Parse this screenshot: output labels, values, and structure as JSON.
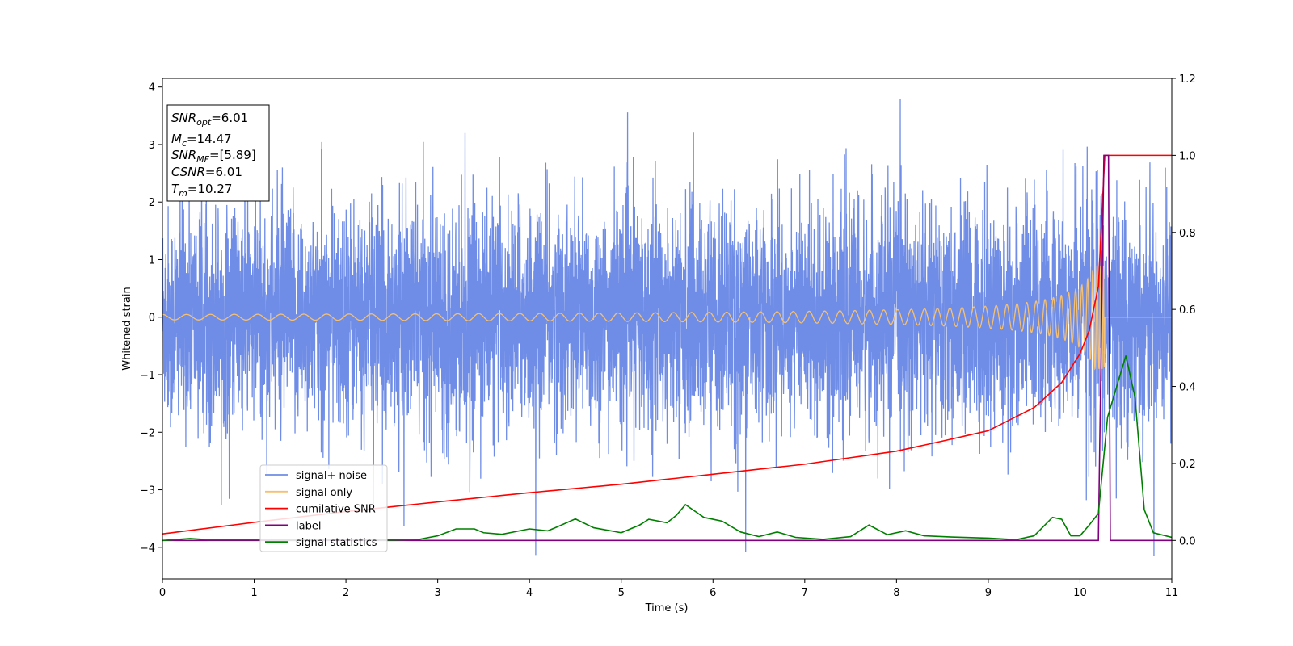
{
  "chart_data": {
    "type": "line",
    "xlabel": "Time (s)",
    "ylabel": "Whitened strain",
    "xlim": [
      0,
      11
    ],
    "ylim_left": [
      -4.55,
      4.15
    ],
    "ylim_right": [
      -0.1,
      1.2
    ],
    "x_ticks": [
      "0",
      "1",
      "2",
      "3",
      "4",
      "5",
      "6",
      "7",
      "8",
      "9",
      "10",
      "11"
    ],
    "y_ticks_left": [
      "−4",
      "−3",
      "−2",
      "−1",
      "0",
      "1",
      "2",
      "3",
      "4"
    ],
    "y_ticks_right": [
      "0.0",
      "0.2",
      "0.4",
      "0.6",
      "0.8",
      "1.0",
      "1.2"
    ],
    "grid": false,
    "legend_placement": "lower-left",
    "series": [
      {
        "name": "signal+ noise",
        "axis": "left",
        "color": "#6f8de6",
        "description_values": "noise band approx ±1.3 typical, peaks to +3.75 / −4.15"
      },
      {
        "name": "signal only",
        "axis": "left",
        "color": "#f5c072",
        "chirp_end": 10.27,
        "max_amplitude": 0.9
      },
      {
        "name": "cumilative SNR",
        "axis": "right",
        "color": "#ff0000",
        "x": [
          0,
          1,
          2,
          3,
          4,
          5,
          6,
          7,
          8,
          8.5,
          9,
          9.5,
          9.8,
          10,
          10.1,
          10.2,
          10.27,
          10.3,
          11
        ],
        "y": [
          0.017,
          0.047,
          0.075,
          0.1,
          0.124,
          0.146,
          0.172,
          0.198,
          0.232,
          0.258,
          0.285,
          0.345,
          0.41,
          0.485,
          0.545,
          0.66,
          1.0,
          1.0,
          1.0
        ]
      },
      {
        "name": "label",
        "axis": "right",
        "color": "#800080",
        "x": [
          0,
          10.2,
          10.26,
          10.31,
          10.33,
          11
        ],
        "y": [
          0,
          0,
          1.0,
          1.0,
          0,
          0
        ]
      },
      {
        "name": "signal statistics",
        "axis": "right",
        "color": "#008000",
        "x": [
          0,
          0.3,
          0.5,
          1,
          1.5,
          2,
          2.5,
          2.8,
          3,
          3.2,
          3.4,
          3.5,
          3.7,
          4,
          4.2,
          4.3,
          4.5,
          4.7,
          5,
          5.2,
          5.3,
          5.5,
          5.6,
          5.7,
          5.9,
          6,
          6.1,
          6.3,
          6.5,
          6.7,
          6.9,
          7.2,
          7.5,
          7.7,
          7.9,
          8.1,
          8.3,
          8.6,
          9,
          9.3,
          9.5,
          9.7,
          9.8,
          9.9,
          10,
          10.1,
          10.2,
          10.3,
          10.5,
          10.6,
          10.7,
          10.8,
          11
        ],
        "y": [
          0,
          0.005,
          0.002,
          0.002,
          0.001,
          0.002,
          0.001,
          0.003,
          0.012,
          0.03,
          0.03,
          0.02,
          0.016,
          0.03,
          0.025,
          0.035,
          0.056,
          0.033,
          0.02,
          0.04,
          0.055,
          0.046,
          0.065,
          0.093,
          0.06,
          0.055,
          0.05,
          0.022,
          0.01,
          0.022,
          0.008,
          0.003,
          0.01,
          0.04,
          0.015,
          0.025,
          0.012,
          0.009,
          0.006,
          0.002,
          0.012,
          0.06,
          0.055,
          0.012,
          0.012,
          0.04,
          0.07,
          0.32,
          0.48,
          0.37,
          0.08,
          0.02,
          0.008
        ]
      }
    ],
    "annotation": {
      "lines": [
        {
          "sym": "SNR",
          "sub": "opt",
          "value": "=6.01"
        },
        {
          "sym": "M",
          "sub": "c",
          "value": "=14.47"
        },
        {
          "sym": "SNR",
          "sub": "MF",
          "value": "=[5.89]"
        },
        {
          "sym": "CSNR",
          "sub": "",
          "value": "=6.01"
        },
        {
          "sym": "T",
          "sub": "m",
          "value": "=10.27"
        }
      ]
    }
  }
}
